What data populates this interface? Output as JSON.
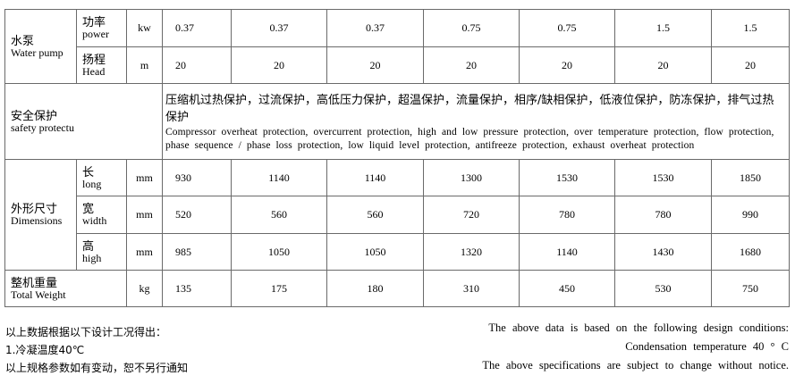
{
  "water_pump": {
    "label_zh": "水泵",
    "label_en": "Water  pump",
    "power": {
      "label_zh": "功率",
      "label_en": "power",
      "unit": "kw",
      "values": [
        "0.37",
        "0.37",
        "0.37",
        "0.75",
        "0.75",
        "1.5",
        "1.5"
      ]
    },
    "head": {
      "label_zh": "扬程",
      "label_en": "Head",
      "unit": "m",
      "values": [
        "20",
        "20",
        "20",
        "20",
        "20",
        "20",
        "20"
      ]
    }
  },
  "safety": {
    "label_zh": "安全保护",
    "label_en": "safety  protectu",
    "text_zh": "压缩机过热保护，过流保护，高低压力保护，超温保护，流量保护，相序/缺相保护，低液位保护，防冻保护，排气过热保护",
    "text_en": "Compressor  overheat  protection,  overcurrent  protection,  high and low pressure  protection,  over temperature   protection,  flow  protection,  phase sequence  / phase loss protection,  low liquid level protection,  antifreeze  protection,  exhaust  overheat  protection"
  },
  "dimensions": {
    "label_zh": "外形尺寸",
    "label_en": "Dimensions",
    "rows": [
      {
        "label_zh": "长",
        "label_en": "long",
        "unit": "mm",
        "values": [
          "930",
          "1140",
          "1140",
          "1300",
          "1530",
          "1530",
          "1850"
        ]
      },
      {
        "label_zh": "宽",
        "label_en": "width",
        "unit": "mm",
        "values": [
          "520",
          "560",
          "560",
          "720",
          "780",
          "780",
          "990"
        ]
      },
      {
        "label_zh": "高",
        "label_en": "high",
        "unit": "mm",
        "values": [
          "985",
          "1050",
          "1050",
          "1320",
          "1140",
          "1430",
          "1680"
        ]
      }
    ]
  },
  "weight": {
    "label_zh": "整机重量",
    "label_en": "Total  Weight",
    "unit": "kg",
    "values": [
      "135",
      "175",
      "180",
      "310",
      "450",
      "530",
      "750"
    ]
  },
  "notes_zh": [
    "以上数据根据以下设计工况得出：",
    "1.冷凝温度40℃",
    "以上规格参数如有变动，恕不另行通知"
  ],
  "notes_en": [
    "The above  data  is based  on the  following  design  conditions:",
    "Condensation    temperature    40 ° C",
    "The above  specifications  are subject  to change  without notice."
  ]
}
